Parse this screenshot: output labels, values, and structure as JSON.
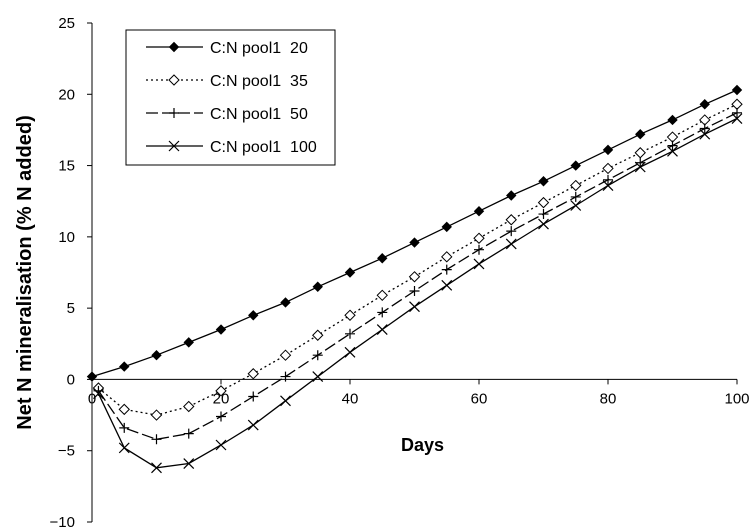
{
  "chart_data": {
    "type": "line",
    "xlabel": "Days",
    "ylabel": "Net N mineralisation (% N added)",
    "xlim": [
      0,
      100
    ],
    "ylim": [
      -10,
      25
    ],
    "xticks": [
      0,
      20,
      40,
      60,
      80,
      100
    ],
    "yticks": [
      -10,
      -5,
      0,
      5,
      10,
      15,
      20,
      25
    ],
    "grid": false,
    "legend_position": "top-left",
    "x": [
      0,
      1,
      5,
      10,
      15,
      20,
      25,
      30,
      35,
      40,
      45,
      50,
      55,
      60,
      65,
      70,
      75,
      80,
      85,
      90,
      95,
      100
    ],
    "series": [
      {
        "name": "C:N pool1  20",
        "marker": "filled-diamond",
        "linestyle": "solid",
        "values": [
          0.2,
          null,
          0.9,
          1.7,
          2.6,
          3.5,
          4.5,
          5.4,
          6.5,
          7.5,
          8.5,
          9.6,
          10.7,
          11.8,
          12.9,
          13.9,
          15.0,
          16.1,
          17.2,
          18.2,
          19.3,
          20.3
        ]
      },
      {
        "name": "C:N pool1  35",
        "marker": "open-diamond",
        "linestyle": "dotted",
        "values": [
          null,
          -0.6,
          -2.1,
          -2.5,
          -1.9,
          -0.8,
          0.4,
          1.7,
          3.1,
          4.5,
          5.9,
          7.2,
          8.6,
          9.9,
          11.2,
          12.4,
          13.6,
          14.8,
          15.9,
          17.0,
          18.2,
          19.3
        ]
      },
      {
        "name": "C:N pool1  50",
        "marker": "plus",
        "linestyle": "long-dash",
        "values": [
          null,
          -0.8,
          -3.4,
          -4.2,
          -3.8,
          -2.6,
          -1.2,
          0.2,
          1.7,
          3.2,
          4.7,
          6.2,
          7.7,
          9.1,
          10.4,
          11.6,
          12.8,
          14.0,
          15.2,
          16.4,
          17.6,
          18.7
        ]
      },
      {
        "name": "C:N pool1  100",
        "marker": "x",
        "linestyle": "solid",
        "values": [
          null,
          -1.0,
          -4.8,
          -6.2,
          -5.9,
          -4.6,
          -3.2,
          -1.5,
          0.2,
          1.9,
          3.5,
          5.1,
          6.6,
          8.1,
          9.5,
          10.9,
          12.2,
          13.6,
          14.9,
          16.0,
          17.2,
          18.3
        ]
      }
    ]
  }
}
